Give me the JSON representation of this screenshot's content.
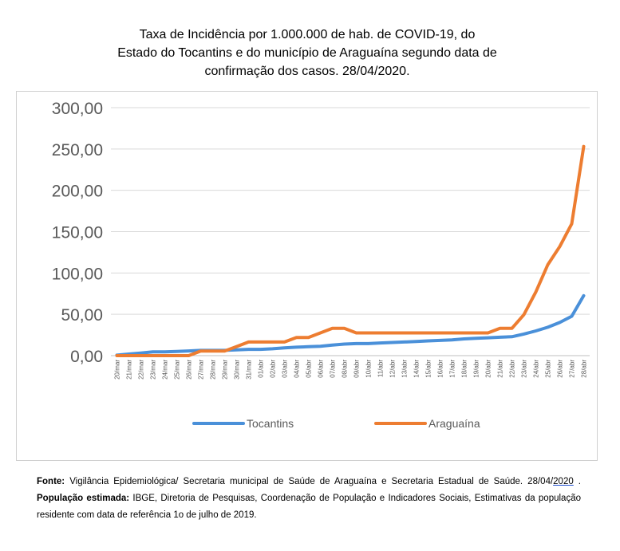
{
  "title_lines": [
    "Taxa de Incidência por 1.000.000 de hab. de COVID-19, do",
    "Estado do Tocantins e do município de Araguaína segundo data de",
    "confirmação dos casos. 28/04/2020."
  ],
  "chart_data": {
    "type": "line",
    "title": "Taxa de Incidência por 1.000.000 de hab. de COVID-19, do Estado do Tocantins e do município de Araguaína segundo data de confirmação dos casos. 28/04/2020.",
    "categories": [
      "20/mar",
      "21/mar",
      "22/mar",
      "23/mar",
      "24/mar",
      "25/mar",
      "26/mar",
      "27/mar",
      "28/mar",
      "29/mar",
      "30/mar",
      "31/mar",
      "01/abr",
      "02/abr",
      "03/abr",
      "04/abr",
      "05/abr",
      "06/abr",
      "07/abr",
      "08/abr",
      "09/abr",
      "10/abr",
      "11/abr",
      "12/abr",
      "13/abr",
      "14/abr",
      "15/abr",
      "16/abr",
      "17/abr",
      "18/abr",
      "19/abr",
      "20/abr",
      "21/abr",
      "22/abr",
      "23/abr",
      "24/abr",
      "25/abr",
      "26/abr",
      "27/abr",
      "28/abr"
    ],
    "y_tick_labels": [
      "0,00",
      "50,00",
      "100,00",
      "150,00",
      "200,00",
      "250,00",
      "300,00"
    ],
    "ylim": [
      0,
      300
    ],
    "grid": true,
    "legend_position": "bottom",
    "series": [
      {
        "name": "Tocantins",
        "color": "#4a90d9",
        "values": [
          0.6,
          1.9,
          3.2,
          4.5,
          4.5,
          5.1,
          5.7,
          6.4,
          6.4,
          6.4,
          7.0,
          7.6,
          7.6,
          8.3,
          9.5,
          10.2,
          10.8,
          11.4,
          12.7,
          14.0,
          14.6,
          14.6,
          15.3,
          15.9,
          16.5,
          17.2,
          17.8,
          18.4,
          19.1,
          20.3,
          21.0,
          21.6,
          22.3,
          22.9,
          26.1,
          29.9,
          34.3,
          40.1,
          47.7,
          72.5
        ]
      },
      {
        "name": "Araguaína",
        "color": "#ed7d31",
        "values": [
          0,
          0,
          0,
          0,
          0,
          0,
          0,
          5.5,
          5.5,
          5.5,
          11.0,
          16.5,
          16.5,
          16.5,
          16.5,
          22.0,
          22.0,
          27.5,
          33.0,
          33.0,
          27.5,
          27.5,
          27.5,
          27.5,
          27.5,
          27.5,
          27.5,
          27.5,
          27.5,
          27.5,
          27.5,
          27.5,
          33.0,
          33.0,
          49.5,
          77.0,
          110.0,
          132.0,
          159.5,
          253.0
        ]
      }
    ]
  },
  "footnote": {
    "source_label": "Fonte:",
    "source_text": " Vigilância Epidemiológica/ Secretaria municipal de Saúde de Araguaína e Secretaria Estadual de Saúde. 28/04/",
    "year": "2020",
    "sep": " . ",
    "pop_label": "População estimada:",
    "pop_text": " IBGE, Diretoria de Pesquisas, Coordenação de População e Indicadores Sociais, Estimativas da população residente com data de referência 1o de julho de 2019."
  }
}
